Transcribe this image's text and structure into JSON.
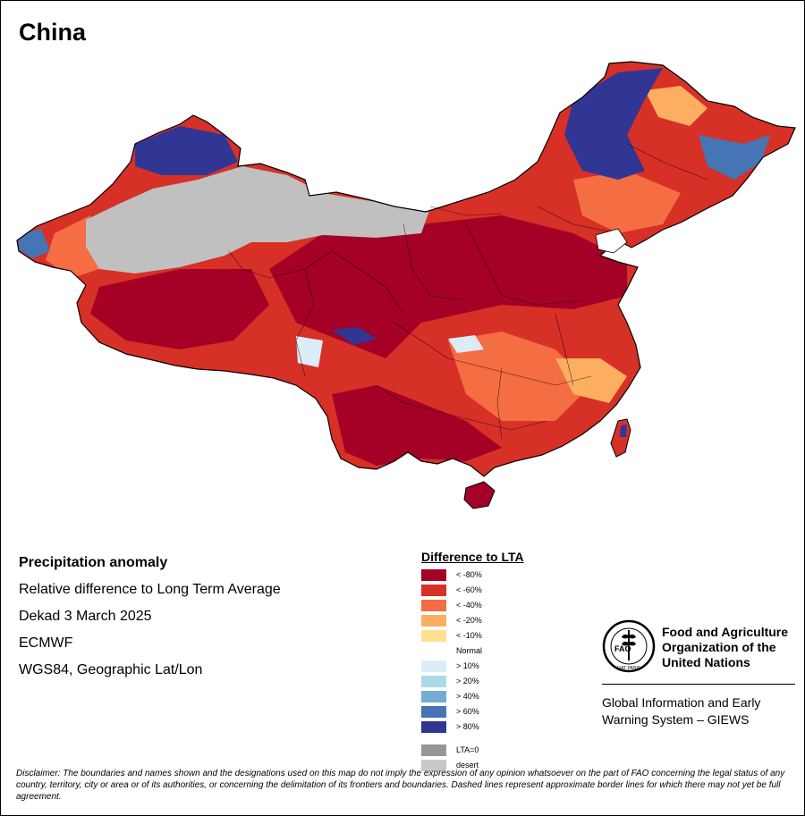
{
  "map": {
    "title": "China",
    "colors": {
      "deep_red": "#a50026",
      "red": "#d73027",
      "orange": "#f46d43",
      "light_orange": "#fdae61",
      "pale_yellow": "#fee090",
      "desert": "#c0c0c0",
      "pale_blue": "#dcecf6",
      "blue": "#4575b4",
      "dark_blue": "#313695"
    }
  },
  "info": {
    "product": "Precipitation anomaly",
    "description": "Relative difference to Long Term Average",
    "period": "Dekad 3 March 2025",
    "source": "ECMWF",
    "projection": "WGS84, Geographic Lat/Lon"
  },
  "legend": {
    "title": "Difference to LTA",
    "normal_label": "Normal",
    "dry": [
      {
        "label": "< -80%",
        "color": "#a50026"
      },
      {
        "label": "< -60%",
        "color": "#d73027"
      },
      {
        "label": "< -40%",
        "color": "#f46d43"
      },
      {
        "label": "< -20%",
        "color": "#fdae61"
      },
      {
        "label": "< -10%",
        "color": "#fee090"
      }
    ],
    "wet": [
      {
        "label": "> 10%",
        "color": "#dcecf6"
      },
      {
        "label": "> 20%",
        "color": "#abd9e9"
      },
      {
        "label": "> 40%",
        "color": "#74add1"
      },
      {
        "label": "> 60%",
        "color": "#4575b4"
      },
      {
        "label": "> 80%",
        "color": "#313695"
      }
    ],
    "other": [
      {
        "label": "LTA=0",
        "color": "#969696"
      },
      {
        "label": "desert",
        "color": "#c8c8c8"
      }
    ]
  },
  "organization": {
    "name_line1": "Food and Agriculture",
    "name_line2": "Organization of the",
    "name_line3": "United Nations",
    "logo_text": "FAO",
    "logo_motto": "FIAT PANIS",
    "system_line1": "Global Information and Early",
    "system_line2": "Warning System – GIEWS"
  },
  "disclaimer": "Disclaimer: The boundaries and names shown and the designations used on this map do not imply the expression of any opinion whatsoever on the part of FAO concerning the legal status of any country, territory, city or area or of its authorities, or concerning the delimitation of its frontiers and boundaries. Dashed lines represent approximate border lines for which there may not yet be full agreement."
}
